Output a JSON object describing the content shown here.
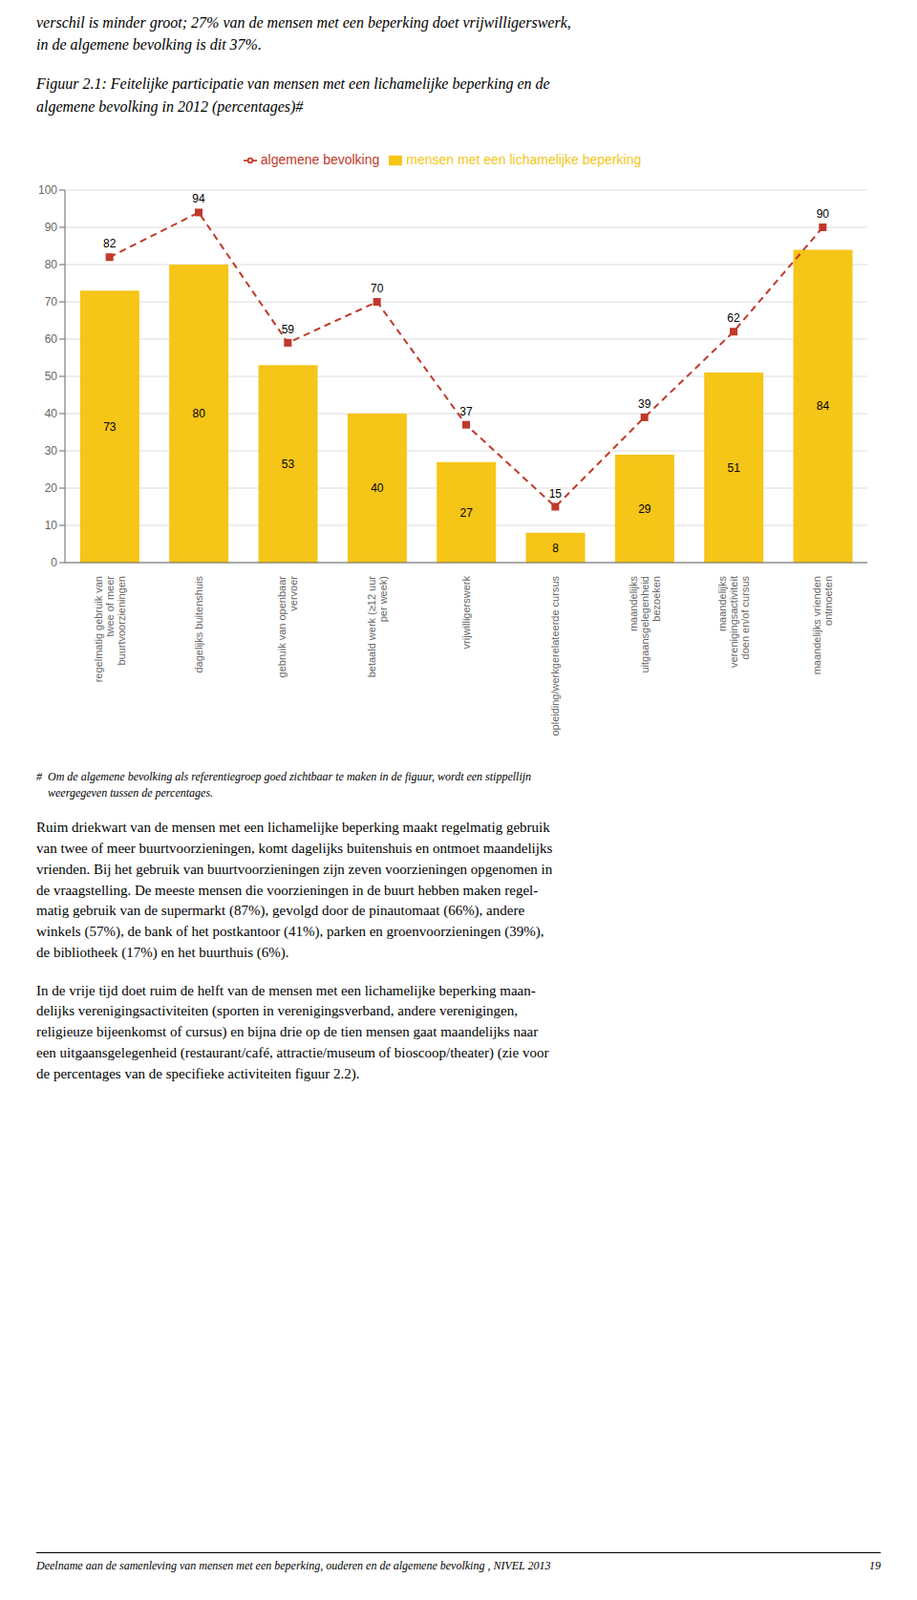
{
  "chart_data": {
    "type": "bar",
    "title": "Figuur 2.1: Feitelijke participatie van mensen met een lichamelijke beperking en de\nalgemene bevolking in 2012 (percentages)#",
    "annotations": [
      "verschil is minder groot; 27% van de mensen met een beperking doet vrijwilligerswerk,\nin de algemene bevolking is dit 37%.",
      "#  Om de algemene bevolking als referentiegroep goed zichtbaar te maken in de figuur, wordt een stippellijn\n    weergegeven tussen de percentages.",
      "Ruim driekwart van de mensen met een lichamelijke beperking maakt regelmatig gebruik\nvan twee of meer buurtvoorzieningen, komt dagelijks buitenshuis en ontmoet maandelijks\nvrienden. Bij het gebruik van buurtvoorzieningen zijn zeven voorzieningen opgenomen in\nde vraagstelling. De meeste mensen die voorzieningen in de buurt hebben maken regel-\nmatig gebruik van de supermarkt (87%), gevolgd door de pinautomaat (66%), andere\nwinkels (57%), de bank of het postkantoor (41%), parken en groenvoorzieningen (39%),\nde bibliotheek (17%) en het buurthuis (6%).",
      "In de vrije tijd doet ruim de helft van de mensen met een lichamelijke beperking maan-\ndelijks verenigingsactiviteiten (sporten in verenigingsverband, andere verenigingen,\nreligieuze bijeenkomst of cursus) en bijna drie op de tien mensen gaat maandelijks naar\neen uitgaansgelegenheid (restaurant/café, attractie/museum of bioscoop/theater) (zie voor\nde percentages van de specifieke activiteiten figuur 2.2).",
      "Deelname aan de samenleving van mensen met een beperking, ouderen en de algemene bevolking , NIVEL 2013",
      "19"
    ],
    "categories": [
      "regelmatig gebruik van\ntwee of meer\nbuurtvoorzieningen",
      "dagelijks buitenshuis",
      "gebruik van openbaar\nvervoer",
      "betaald werk (≥12 uur\nper week)",
      "vrijwilligerswerk",
      "opleiding/werkgerelateerde cursus",
      "maandelijks\nuitgaansgelegenheid\nbezoeken",
      "maandelijks\nverenigingsactiviteit\ndoen en/of cursus",
      "maandelijks vrienden\nontmoeten"
    ],
    "series": [
      {
        "name": "mensen met een lichamelijke beperking",
        "type": "bar",
        "color": "#F5C518",
        "values": [
          73,
          80,
          53,
          40,
          27,
          8,
          29,
          51,
          84
        ]
      },
      {
        "name": "algemene bevolking",
        "type": "line",
        "color": "#C0392B",
        "line_style": "dashed",
        "marker": "square",
        "values": [
          82,
          94,
          59,
          70,
          37,
          15,
          39,
          62,
          90
        ]
      }
    ],
    "ylim": [
      0,
      100
    ],
    "yticks": [
      0,
      10,
      20,
      30,
      40,
      50,
      60,
      70,
      80,
      90,
      100
    ],
    "grid": true,
    "legend": "top",
    "data_labels": true
  }
}
